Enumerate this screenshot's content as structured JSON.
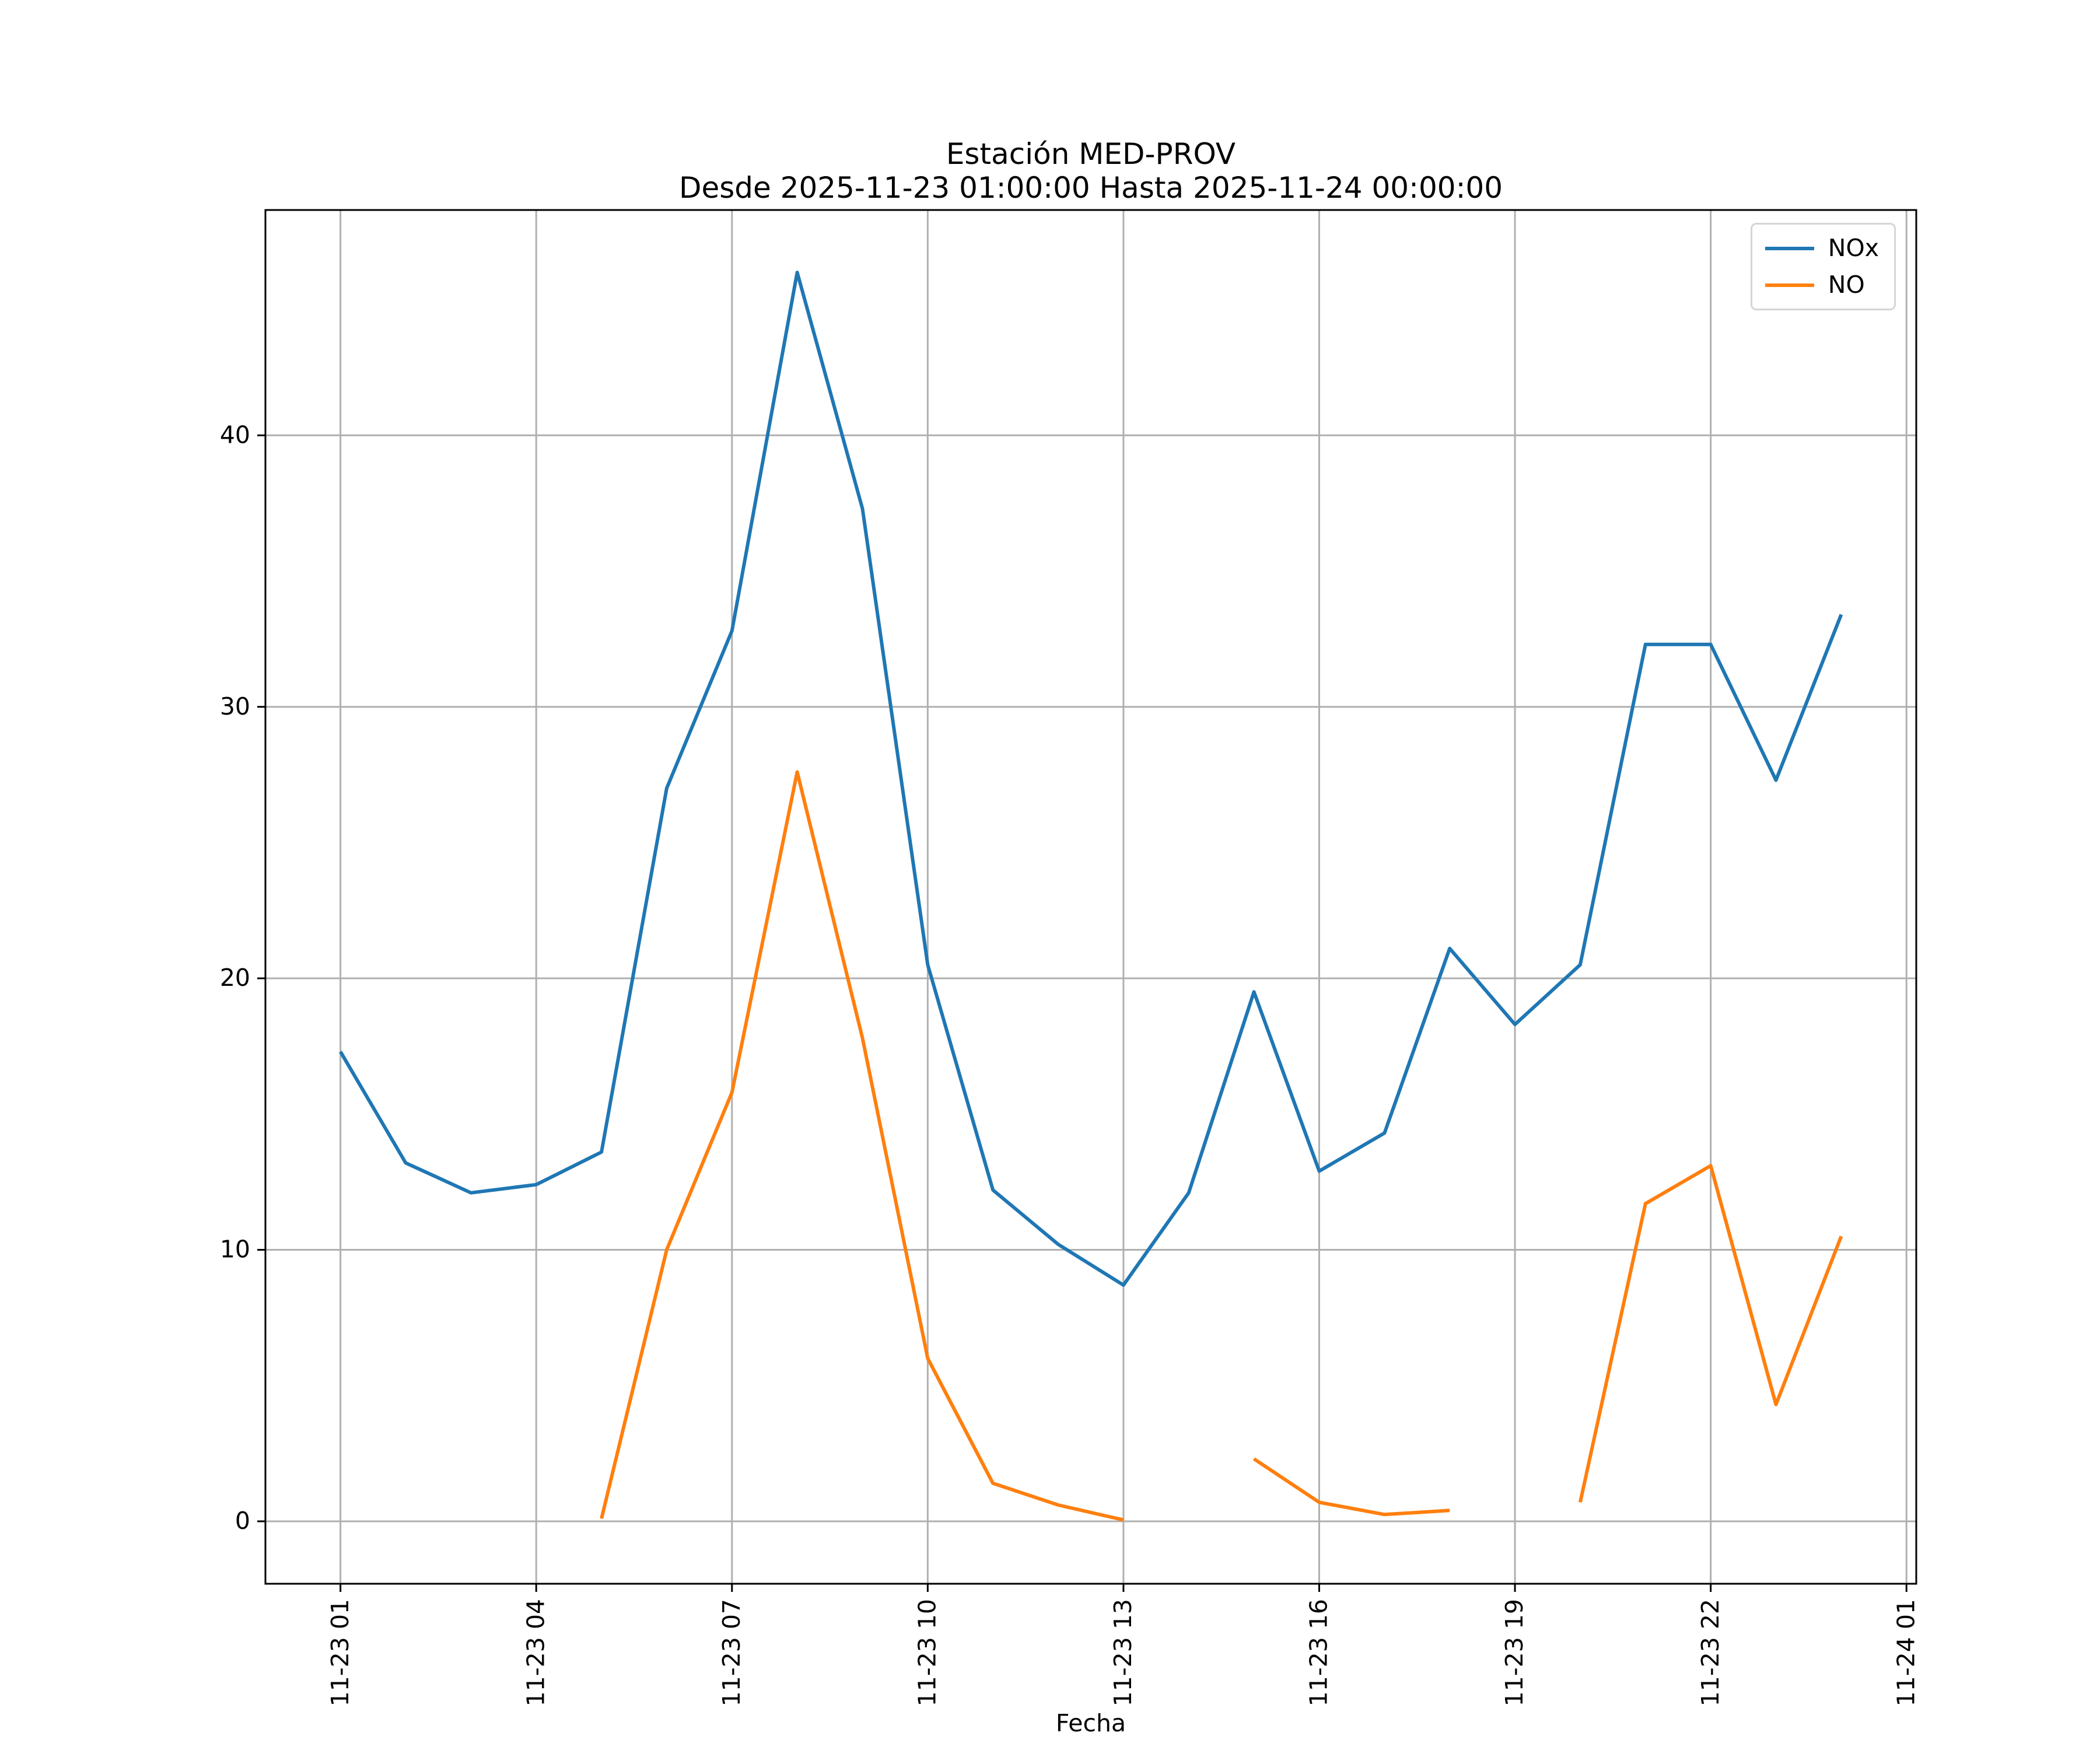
{
  "chart_data": {
    "type": "line",
    "title": "Estación MED-PROV",
    "subtitle": "Desde 2025-11-23 01:00:00 Hasta 2025-11-24 00:00:00",
    "xlabel": "Fecha",
    "ylabel": "",
    "x_unit": "hour of day on 2025-11-23 (24 = 2025-11-24 00:00, tick 25 = 2025-11-24 01:00)",
    "x": [
      1,
      2,
      3,
      4,
      5,
      6,
      7,
      8,
      9,
      10,
      11,
      12,
      13,
      14,
      15,
      16,
      17,
      18,
      19,
      20,
      21,
      22,
      23,
      24
    ],
    "series": [
      {
        "name": "NOx",
        "color": "#1f77b4",
        "values": [
          17.3,
          13.2,
          12.1,
          12.4,
          13.6,
          27.0,
          32.8,
          46.0,
          37.3,
          20.5,
          12.2,
          10.2,
          8.7,
          12.1,
          19.5,
          12.9,
          14.3,
          21.1,
          18.3,
          20.5,
          32.3,
          32.3,
          27.3,
          33.4
        ]
      },
      {
        "name": "NO",
        "color": "#ff7f0e",
        "values": [
          null,
          null,
          null,
          null,
          0.1,
          10.0,
          15.8,
          27.6,
          17.8,
          6.0,
          1.4,
          0.6,
          0.05,
          null,
          2.3,
          0.7,
          0.25,
          0.4,
          null,
          0.7,
          11.7,
          13.1,
          4.3,
          10.5
        ]
      }
    ],
    "x_ticks": [
      {
        "hour": 1,
        "label": "11-23 01"
      },
      {
        "hour": 4,
        "label": "11-23 04"
      },
      {
        "hour": 7,
        "label": "11-23 07"
      },
      {
        "hour": 10,
        "label": "11-23 10"
      },
      {
        "hour": 13,
        "label": "11-23 13"
      },
      {
        "hour": 16,
        "label": "11-23 16"
      },
      {
        "hour": 19,
        "label": "11-23 19"
      },
      {
        "hour": 22,
        "label": "11-23 22"
      },
      {
        "hour": 25,
        "label": "11-24 01"
      }
    ],
    "y_ticks": [
      0,
      10,
      20,
      30,
      40
    ],
    "xlim": [
      -0.15,
      25.15
    ],
    "ylim": [
      -2.3,
      48.3
    ],
    "grid": true,
    "grid_color": "#b0b0b0",
    "axes_color": "#000000",
    "legend_position": "upper right"
  }
}
